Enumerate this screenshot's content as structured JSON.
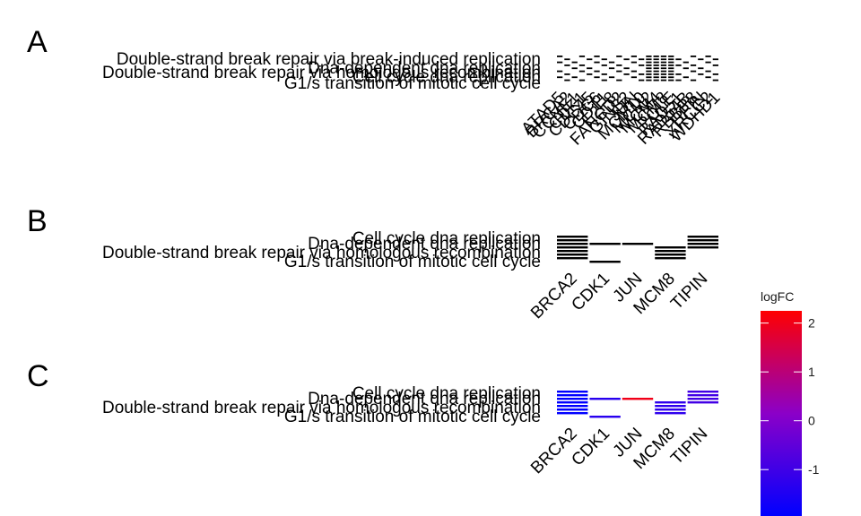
{
  "chart_data": [
    {
      "panel": "A",
      "type": "heatmap",
      "fill": "black",
      "terms": [
        "Double-strand break repair via break-induced replication",
        "Dna-dependent dna replication",
        "Double-strand break repair via homologous recombination",
        "Cell cycle dna replication",
        "G1/s transition of mitotic cell cycle"
      ],
      "genes": [
        "ATAD5",
        "BRCA2",
        "CCNE1",
        "CDK1",
        "CDC45",
        "CDC6",
        "CDT1",
        "E2F8",
        "FANCD2",
        "GINS2",
        "JUN",
        "MCM10",
        "MCM2",
        "MCM4",
        "MCM8",
        "POLE",
        "RAD51",
        "RAD54B",
        "RBBP8",
        "TIPIN",
        "XRCC2",
        "WDHD1"
      ]
    },
    {
      "panel": "B",
      "type": "heatmap",
      "fill": "black",
      "terms": [
        "Cell cycle dna replication",
        "Dna-dependent dna replication",
        "Double-strand break repair via homologous recombination",
        "G1/s transition of mitotic cell cycle"
      ],
      "genes": [
        "BRCA2",
        "CDK1",
        "JUN",
        "MCM8",
        "TIPIN"
      ]
    },
    {
      "panel": "C",
      "type": "heatmap",
      "fill": "logFC",
      "terms": [
        "Cell cycle dna replication",
        "Dna-dependent dna replication",
        "Double-strand break repair via homologous recombination",
        "G1/s transition of mitotic cell cycle"
      ],
      "genes": [
        "BRCA2",
        "CDK1",
        "JUN",
        "MCM8",
        "TIPIN"
      ],
      "logFC": {
        "BRCA2": -1.95,
        "CDK1": -1.35,
        "JUN": 2.0,
        "MCM8": -1.25,
        "TIPIN": -0.95
      }
    }
  ],
  "legend": {
    "title": "logFC",
    "ticks": [
      2,
      1,
      0,
      -1
    ],
    "range": [
      -1.95,
      2.25
    ],
    "low_color": "#0000ff",
    "high_color": "#ff0000"
  }
}
